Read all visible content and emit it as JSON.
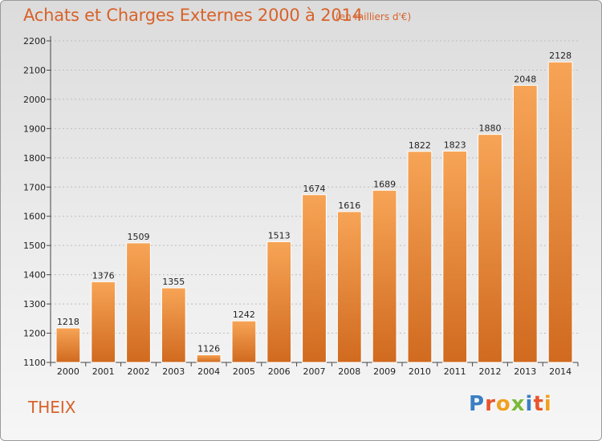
{
  "header": {
    "title": "Achats et Charges Externes 2000 à 2014",
    "unit": "(en milliers d'€)"
  },
  "footer": {
    "place": "THEIX",
    "logo": [
      "P",
      "r",
      "o",
      "x",
      "i",
      "t",
      "i"
    ]
  },
  "colors": {
    "accent": "#d8622a",
    "bar_top": "#f7a456",
    "bar_bottom": "#d06a1f",
    "logo": [
      "#3b7fc4",
      "#e8552c",
      "#f0a020",
      "#7bb93a",
      "#3b7fc4",
      "#e8552c",
      "#f0a020"
    ]
  },
  "chart_data": {
    "type": "bar",
    "title": "Achats et Charges Externes 2000 à 2014",
    "subtitle": "(en milliers d'€)",
    "categories": [
      "2000",
      "2001",
      "2002",
      "2003",
      "2004",
      "2005",
      "2006",
      "2007",
      "2008",
      "2009",
      "2010",
      "2011",
      "2012",
      "2013",
      "2014"
    ],
    "values": [
      1218,
      1376,
      1509,
      1355,
      1126,
      1242,
      1513,
      1674,
      1616,
      1689,
      1822,
      1823,
      1880,
      2048,
      2128
    ],
    "ylim": [
      1100,
      2200
    ],
    "yticks": [
      1100,
      1200,
      1300,
      1400,
      1500,
      1600,
      1700,
      1800,
      1900,
      2000,
      2100,
      2200
    ],
    "grid": true,
    "data_labels": true
  }
}
